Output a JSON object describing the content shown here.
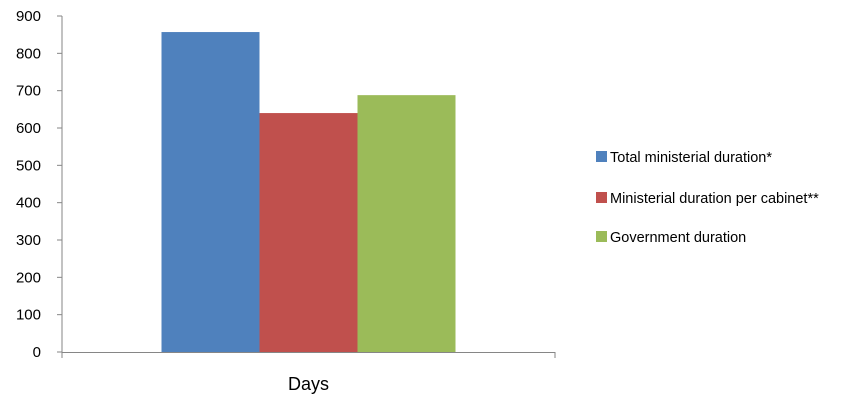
{
  "chart_data": {
    "type": "bar",
    "categories": [
      "Days"
    ],
    "series": [
      {
        "name": "Total ministerial duration*",
        "values": [
          857
        ],
        "color": "#4F81BD"
      },
      {
        "name": "Ministerial duration per cabinet**",
        "values": [
          640
        ],
        "color": "#C0504D"
      },
      {
        "name": "Government duration",
        "values": [
          688
        ],
        "color": "#9BBB59"
      }
    ],
    "yticks": [
      0,
      100,
      200,
      300,
      400,
      500,
      600,
      700,
      800,
      900
    ],
    "ylim": [
      0,
      900
    ],
    "grid": false,
    "legend_position": "right"
  }
}
